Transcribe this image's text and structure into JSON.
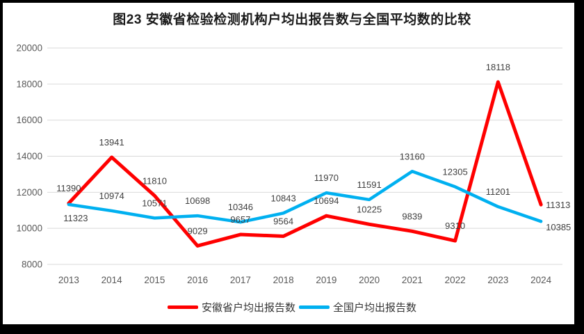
{
  "title": "图23 安徽省检验检测机构户均出报告数与全国平均数的比较",
  "colors": {
    "anhui_red": "#FF0000",
    "national_blue": "#00B0F0",
    "gridline": "#D9D9D9",
    "axis_text": "#595959",
    "data_label_text": "#404040",
    "legend_text": "#333333",
    "frame": "#000000",
    "background": "#FFFFFF"
  },
  "chart_data": {
    "type": "line",
    "title": "图23 安徽省检验检测机构户均出报告数与全国平均数的比较",
    "categories": [
      "2013",
      "2014",
      "2015",
      "2016",
      "2017",
      "2018",
      "2019",
      "2020",
      "2021",
      "2022",
      "2023",
      "2024"
    ],
    "series": [
      {
        "name": "安徽省户均出报告数",
        "color": "#FF0000",
        "values": [
          11390,
          13941,
          11810,
          9029,
          9657,
          9564,
          10694,
          10225,
          9839,
          9310,
          18118,
          11313
        ],
        "label_positions": [
          "above",
          "above",
          "above",
          "above",
          "above",
          "above",
          "above",
          "above",
          "above",
          "above",
          "above",
          "right"
        ]
      },
      {
        "name": "全国户均出报告数",
        "color": "#00B0F0",
        "values": [
          11323,
          10974,
          10571,
          10698,
          10346,
          10843,
          11970,
          11591,
          13160,
          12305,
          11201,
          10385
        ],
        "label_positions": [
          "below",
          "above",
          "above",
          "above",
          "above",
          "above",
          "above",
          "above",
          "above",
          "above",
          "above",
          "below-right"
        ]
      }
    ],
    "xlabel": "",
    "ylabel": "",
    "ylim": [
      8000,
      20000
    ],
    "yticks": [
      "8000",
      "10000",
      "12000",
      "14000",
      "16000",
      "18000",
      "20000"
    ],
    "grid": true,
    "data_labels": true,
    "legend_position": "bottom"
  }
}
